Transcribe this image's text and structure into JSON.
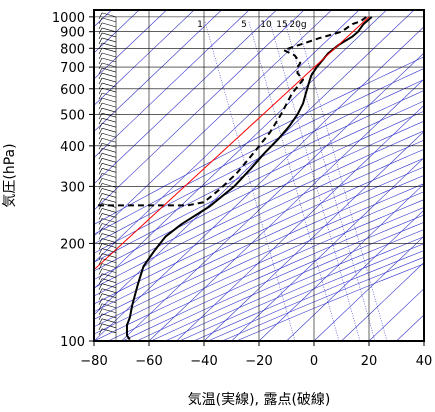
{
  "chart_data": {
    "type": "line",
    "xlabel": "気温(実線), 露点(破線)",
    "ylabel": "気圧(hPa)",
    "xlim": [
      -80,
      40
    ],
    "ylim": [
      1050,
      100
    ],
    "y_scale": "log",
    "x_ticks": [
      "−80",
      "−60",
      "−40",
      "−20",
      "0",
      "20",
      "40"
    ],
    "x_tick_values": [
      -80,
      -60,
      -40,
      -20,
      0,
      20,
      40
    ],
    "y_ticks": [
      "100",
      "200",
      "300",
      "400",
      "500",
      "600",
      "700",
      "800",
      "900",
      "1000"
    ],
    "y_tick_values": [
      100,
      200,
      300,
      400,
      500,
      600,
      700,
      800,
      900,
      1000
    ],
    "mixing_ratio_labels": [
      "1",
      "5",
      "10",
      "15",
      "20g"
    ],
    "mixing_ratio_values": [
      1,
      5,
      10,
      15,
      20
    ],
    "series": [
      {
        "role": "temperature",
        "style": "solid",
        "color": "#000000",
        "points": [
          [
            21,
            1000
          ],
          [
            18,
            950
          ],
          [
            16,
            900
          ],
          [
            14,
            870
          ],
          [
            9,
            820
          ],
          [
            5,
            770
          ],
          [
            1,
            700
          ],
          [
            -1,
            660
          ],
          [
            -2,
            620
          ],
          [
            -3,
            580
          ],
          [
            -4,
            540
          ],
          [
            -6,
            500
          ],
          [
            -9,
            460
          ],
          [
            -13,
            420
          ],
          [
            -18,
            380
          ],
          [
            -23,
            340
          ],
          [
            -29,
            300
          ],
          [
            -38,
            260
          ],
          [
            -48,
            230
          ],
          [
            -54,
            210
          ],
          [
            -58,
            190
          ],
          [
            -62,
            170
          ],
          [
            -64,
            150
          ],
          [
            -66,
            130
          ],
          [
            -67,
            118
          ],
          [
            -68,
            112
          ],
          [
            -68,
            104
          ],
          [
            -67,
            101
          ]
        ]
      },
      {
        "role": "dewpoint",
        "style": "dashed",
        "color": "#000000",
        "points": [
          [
            19,
            1000
          ],
          [
            17,
            970
          ],
          [
            14,
            950
          ],
          [
            10,
            900
          ],
          [
            2,
            860
          ],
          [
            -11,
            790
          ],
          [
            -7,
            760
          ],
          [
            -5,
            720
          ],
          [
            -6,
            700
          ],
          [
            -6,
            670
          ],
          [
            -4,
            640
          ],
          [
            -8,
            580
          ],
          [
            -12,
            500
          ],
          [
            -16,
            440
          ],
          [
            -22,
            380
          ],
          [
            -28,
            330
          ],
          [
            -34,
            295
          ],
          [
            -40,
            268
          ],
          [
            -46,
            262
          ],
          [
            -70,
            262
          ],
          [
            -82,
            262
          ]
        ]
      },
      {
        "role": "parcel",
        "style": "solid",
        "color": "#ff0000",
        "points": [
          [
            20,
            1000
          ],
          [
            -82,
            160
          ]
        ]
      }
    ],
    "wind_profile": "wind barbs along left edge at about -72 °C, from 1000 hPa to 100 hPa",
    "colors": {
      "isotherms": "#3333cc",
      "dry_adiabats": "#3333cc",
      "mixing_ratio": "#3333cc",
      "grid": "#000000",
      "parcel": "#ff0000"
    }
  }
}
